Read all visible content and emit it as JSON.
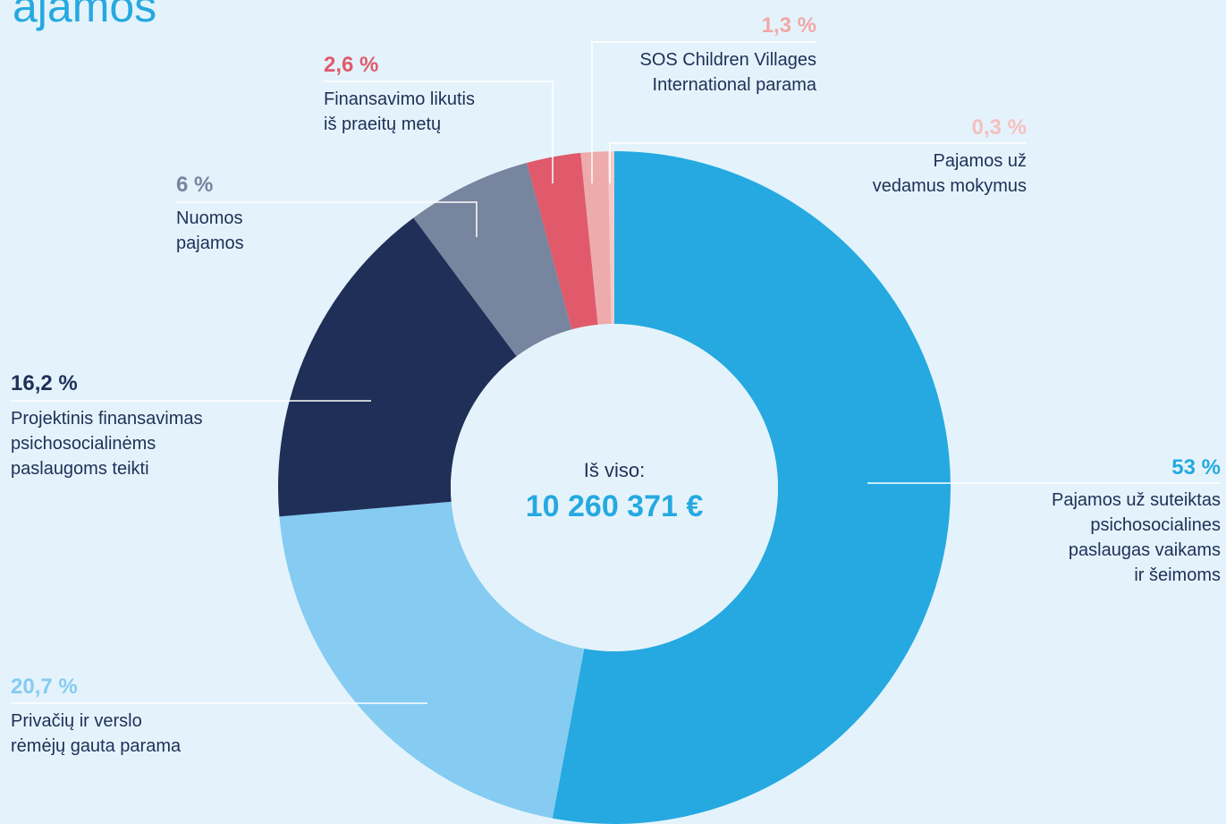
{
  "chart_data": {
    "type": "donut",
    "title": "ajamos",
    "center_label": "Iš viso:",
    "center_value": "10 260 371 €",
    "categories": [
      "Pajamos už suteiktas\npsichosocialines\npaslaugas vaikams\nir šeimoms",
      "Privačių ir verslo\nrėmėjų gauta parama",
      "Projektinis finansavimas\npsichosocialinėms\npaslaugoms teikti",
      "Nuomos\npajamos",
      "Finansavimo likutis\niš praeitų metų",
      "SOS Children Villages\nInternational parama",
      "Pajamos už\nvedamus mokymus"
    ],
    "values": [
      53,
      20.7,
      16.2,
      6,
      2.6,
      1.3,
      0.3
    ],
    "value_labels": [
      "53 %",
      "20,7 %",
      "16,2 %",
      "6 %",
      "2,6 %",
      "1,3 %",
      "0,3 %"
    ],
    "colors": [
      "#25a9e0",
      "#85cbf2",
      "#1f2f57",
      "#77859e",
      "#e05a6b",
      "#eeabac",
      "#f5c9c8"
    ]
  }
}
